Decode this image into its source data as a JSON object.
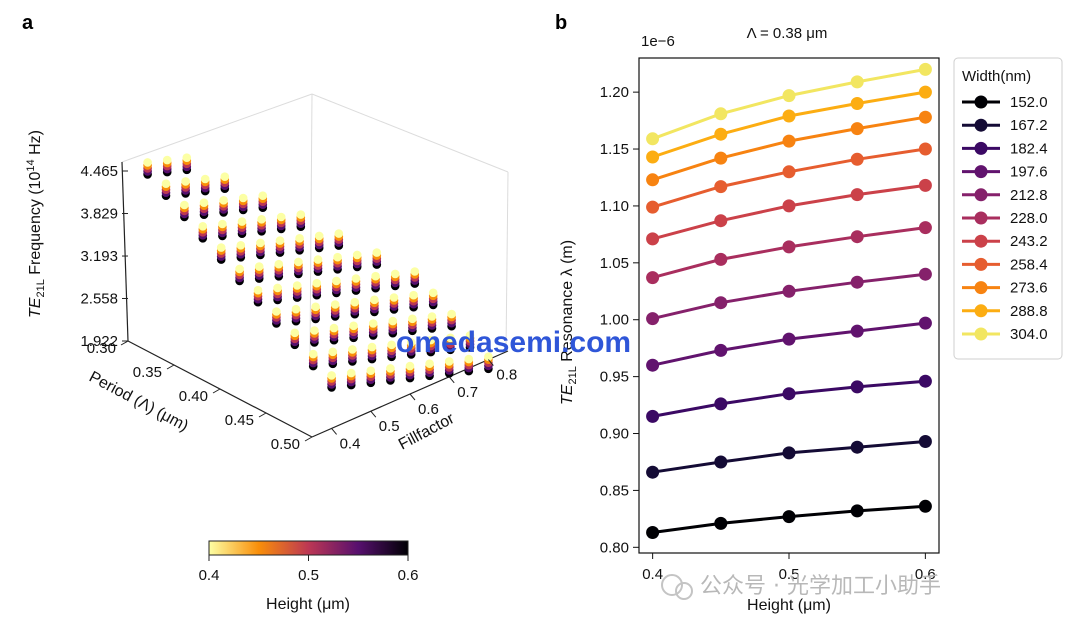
{
  "panel_a": {
    "letter": "a",
    "z_axis_label_prefix": "TE",
    "z_axis_label_sub": "21L",
    "z_axis_label_text": "Frequency (10",
    "z_axis_label_sup": "14",
    "z_axis_label_unit": " Hz)",
    "z_ticks": [
      "4.465",
      "3.829",
      "3.193",
      "2.558",
      "1.922"
    ],
    "x_axis_label": "Period (Λ) (μm)",
    "x_ticks": [
      "0.30",
      "0.35",
      "0.40",
      "0.45",
      "0.50"
    ],
    "y_axis_label": "Fillfactor",
    "y_ticks": [
      "0.4",
      "0.5",
      "0.6",
      "0.7",
      "0.8"
    ],
    "colorbar": {
      "label": "Height (μm)",
      "ticks": [
        "0.4",
        "0.5",
        "0.6"
      ],
      "colors": [
        "#fcffa4",
        "#f98e09",
        "#bc3754",
        "#57106e",
        "#000004"
      ]
    }
  },
  "panel_b": {
    "letter": "b",
    "title": "Λ = 0.38 μm",
    "offset_text": "1e−6",
    "x_axis_label": "Height (μm)",
    "y_axis_label_prefix": "TE",
    "y_axis_label_sub": "21L",
    "y_axis_label_text": " Resonance λ (m)",
    "legend_title": "Width(nm)"
  },
  "chart_data": [
    {
      "type": "scatter",
      "title": "",
      "xlabel": "Period (Λ) (μm)",
      "ylabel": "Fillfactor",
      "zlabel": "TE21L Frequency (10^14 Hz)",
      "xlim": [
        0.3,
        0.5
      ],
      "ylim": [
        0.35,
        0.85
      ],
      "zlim": [
        1.922,
        4.465
      ],
      "color_by": "Height (μm)",
      "color_range": [
        0.4,
        0.6
      ],
      "periods": [
        0.3,
        0.32,
        0.34,
        0.36,
        0.38,
        0.4,
        0.42,
        0.44,
        0.46,
        0.48,
        0.5
      ],
      "fillfactors": [
        0.4,
        0.45,
        0.5,
        0.55,
        0.6,
        0.65,
        0.7,
        0.75,
        0.8
      ],
      "heights": [
        0.4,
        0.45,
        0.5,
        0.55,
        0.6
      ]
    },
    {
      "type": "line",
      "title": "Λ = 0.38 μm",
      "xlabel": "Height (μm)",
      "ylabel": "TE21L Resonance λ (m)",
      "y_scale": "1e-6",
      "x": [
        0.4,
        0.45,
        0.5,
        0.55,
        0.6
      ],
      "xlim": [
        0.39,
        0.61
      ],
      "ylim": [
        0.795,
        1.23
      ],
      "x_ticks": [
        "0.4",
        "0.5",
        "0.6"
      ],
      "y_ticks": [
        "0.80",
        "0.85",
        "0.90",
        "0.95",
        "1.00",
        "1.05",
        "1.10",
        "1.15",
        "1.20"
      ],
      "series": [
        {
          "name": "152.0",
          "color": "#000004",
          "values": [
            0.813,
            0.821,
            0.827,
            0.832,
            0.836
          ]
        },
        {
          "name": "167.2",
          "color": "#140b35",
          "values": [
            0.866,
            0.875,
            0.883,
            0.888,
            0.893
          ]
        },
        {
          "name": "182.4",
          "color": "#3b0964",
          "values": [
            0.915,
            0.926,
            0.935,
            0.941,
            0.946
          ]
        },
        {
          "name": "197.6",
          "color": "#61136e",
          "values": [
            0.96,
            0.973,
            0.983,
            0.99,
            0.997
          ]
        },
        {
          "name": "212.8",
          "color": "#85216b",
          "values": [
            1.001,
            1.015,
            1.025,
            1.033,
            1.04
          ]
        },
        {
          "name": "228.0",
          "color": "#a92e5e",
          "values": [
            1.037,
            1.053,
            1.064,
            1.073,
            1.081
          ]
        },
        {
          "name": "243.2",
          "color": "#cb4149",
          "values": [
            1.071,
            1.087,
            1.1,
            1.11,
            1.118
          ]
        },
        {
          "name": "258.4",
          "color": "#e65d2f",
          "values": [
            1.099,
            1.117,
            1.13,
            1.141,
            1.15
          ]
        },
        {
          "name": "273.6",
          "color": "#f78311",
          "values": [
            1.123,
            1.142,
            1.157,
            1.168,
            1.178
          ]
        },
        {
          "name": "288.8",
          "color": "#fcad12",
          "values": [
            1.143,
            1.163,
            1.179,
            1.19,
            1.2
          ]
        },
        {
          "name": "304.0",
          "color": "#f2e661",
          "values": [
            1.159,
            1.181,
            1.197,
            1.209,
            1.22
          ]
        }
      ]
    }
  ],
  "watermark": {
    "site": "omedasemi.com",
    "account": "公众号 · 光学加工小助手"
  }
}
